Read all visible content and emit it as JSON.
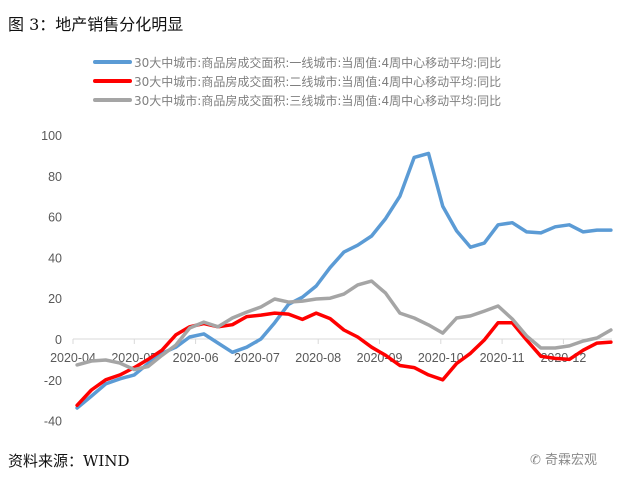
{
  "title": "图 3：地产销售分化明显",
  "source": "资料来源：WIND",
  "watermark": "奇霖宏观",
  "chart_data": {
    "type": "line",
    "title": "",
    "xlabel": "",
    "ylabel": "",
    "ylim": [
      -40,
      100
    ],
    "yticks": [
      100,
      80,
      60,
      40,
      20,
      0,
      -20,
      -40
    ],
    "xticks": [
      "2020-04",
      "2020-05",
      "2020-06",
      "2020-07",
      "2020-08",
      "2020-09",
      "2020-10",
      "2020-11",
      "2020-12"
    ],
    "grid": false,
    "legend": "top",
    "x": [
      "2020-04-03",
      "2020-04-10",
      "2020-04-17",
      "2020-04-24",
      "2020-05-01",
      "2020-05-08",
      "2020-05-15",
      "2020-05-22",
      "2020-05-29",
      "2020-06-05",
      "2020-06-12",
      "2020-06-19",
      "2020-06-26",
      "2020-07-03",
      "2020-07-10",
      "2020-07-17",
      "2020-07-24",
      "2020-07-31",
      "2020-08-07",
      "2020-08-14",
      "2020-08-21",
      "2020-08-28",
      "2020-09-04",
      "2020-09-11",
      "2020-09-18",
      "2020-09-25",
      "2020-10-02",
      "2020-10-09",
      "2020-10-16",
      "2020-10-23",
      "2020-10-30",
      "2020-11-06",
      "2020-11-13",
      "2020-11-20",
      "2020-11-27",
      "2020-12-04",
      "2020-12-11",
      "2020-12-18",
      "2020-12-25"
    ],
    "series": [
      {
        "name": "30大中城市:商品房成交面积:一线城市:当周值:4周中心移动平均:同比",
        "color": "#5b9bd5",
        "values": [
          -33.8,
          -28,
          -22,
          -19.5,
          -17.6,
          -12,
          -7,
          -4,
          1,
          2.5,
          -2,
          -6.5,
          -4,
          0,
          8,
          17,
          20.5,
          26,
          35,
          42.6,
          46,
          50.5,
          59,
          70,
          89,
          91,
          65,
          53,
          45,
          47,
          56,
          57,
          52.5,
          52,
          55,
          56,
          52.5,
          53.4,
          53.4
        ]
      },
      {
        "name": "30大中城市:商品房成交面积:二线城市:当周值:4周中心移动平均:同比",
        "color": "#ff0000",
        "values": [
          -32.5,
          -25,
          -20,
          -17.6,
          -14,
          -10,
          -5.5,
          2,
          6,
          7.6,
          6,
          7,
          11,
          11.7,
          12.7,
          12.2,
          9.6,
          12.7,
          10,
          4.4,
          1,
          -4,
          -8,
          -13,
          -14,
          -17.6,
          -20,
          -12,
          -7,
          -0.5,
          8,
          8,
          -0.5,
          -8.5,
          -9.5,
          -10,
          -5.5,
          -2,
          -1.5
        ]
      },
      {
        "name": "30大中城市:商品房成交面积:三线城市:当周值:4周中心移动平均:同比",
        "color": "#a5a5a5",
        "values": [
          -12.7,
          -10.8,
          -10.3,
          -11.8,
          -15,
          -13.5,
          -8,
          -3,
          5.4,
          8.3,
          6,
          10.3,
          13.2,
          15.7,
          19.6,
          18.1,
          18.6,
          19.6,
          20,
          22,
          26.5,
          28.4,
          22.5,
          12.7,
          10.3,
          6.9,
          2.9,
          10.3,
          11.3,
          13.7,
          16.2,
          9.8,
          1.5,
          -4.4,
          -4.4,
          -3.4,
          -1,
          0.5,
          4.4
        ]
      }
    ]
  }
}
